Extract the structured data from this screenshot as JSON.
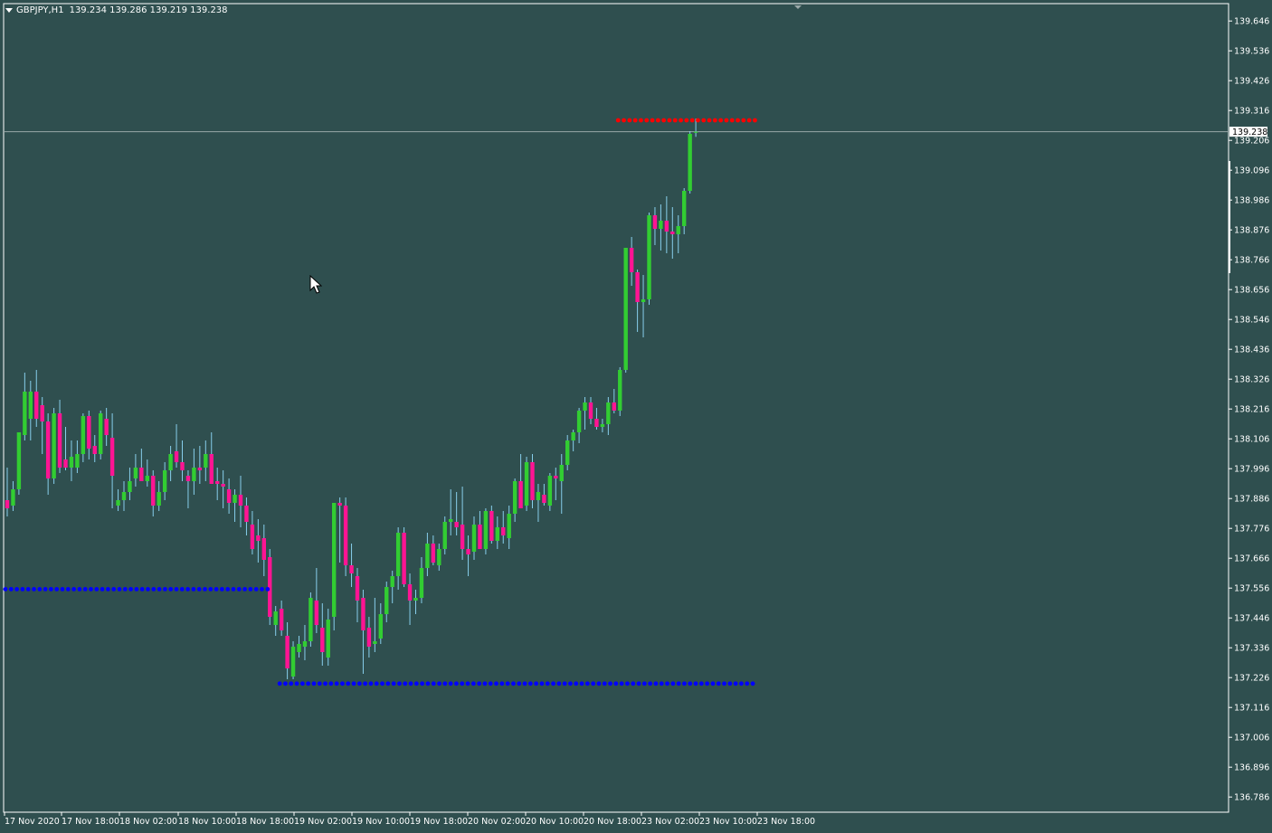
{
  "header": {
    "symbol": "GBPJPY,H1",
    "ohlc": "139.234 139.286 139.219 139.238",
    "menu_icon": "triangle-down-icon"
  },
  "colors": {
    "background": "#2f4f4f",
    "axis": "#ffffff",
    "bull_candle": "#32cd32",
    "bear_candle": "#ff1493",
    "wick": "#87ceeb",
    "resistance_dots": "#ff0000",
    "support_dots": "#0000ff",
    "bid_line": "#9aa8a8"
  },
  "current_price_label": "139.238",
  "chart_data": {
    "type": "candlestick",
    "symbol": "GBPJPY",
    "timeframe": "H1",
    "ylim": [
      136.73,
      139.71
    ],
    "y_ticks": [
      "139.646",
      "139.536",
      "139.426",
      "139.316",
      "139.206",
      "139.096",
      "138.986",
      "138.876",
      "138.766",
      "138.656",
      "138.546",
      "138.436",
      "138.326",
      "138.216",
      "138.106",
      "137.996",
      "137.886",
      "137.776",
      "137.666",
      "137.556",
      "137.446",
      "137.336",
      "137.226",
      "137.116",
      "137.006",
      "136.896",
      "136.786"
    ],
    "x_ticks": [
      "17 Nov 2020",
      "17 Nov 18:00",
      "18 Nov 02:00",
      "18 Nov 10:00",
      "18 Nov 18:00",
      "19 Nov 02:00",
      "19 Nov 10:00",
      "19 Nov 18:00",
      "20 Nov 02:00",
      "20 Nov 10:00",
      "20 Nov 18:00",
      "23 Nov 02:00",
      "23 Nov 10:00",
      "23 Nov 18:00"
    ],
    "current_price": 139.238,
    "candles": [
      {
        "o": 137.88,
        "h": 138.0,
        "l": 137.82,
        "c": 137.85
      },
      {
        "o": 137.86,
        "h": 137.95,
        "l": 137.84,
        "c": 137.92
      },
      {
        "o": 137.92,
        "h": 138.12,
        "l": 137.9,
        "c": 138.13
      },
      {
        "o": 138.12,
        "h": 138.35,
        "l": 138.1,
        "c": 138.28
      },
      {
        "o": 138.18,
        "h": 138.32,
        "l": 138.1,
        "c": 138.28
      },
      {
        "o": 138.28,
        "h": 138.36,
        "l": 138.15,
        "c": 138.18
      },
      {
        "o": 138.23,
        "h": 138.26,
        "l": 138.05,
        "c": 138.17
      },
      {
        "o": 138.17,
        "h": 138.2,
        "l": 137.9,
        "c": 137.96
      },
      {
        "o": 137.96,
        "h": 138.22,
        "l": 137.94,
        "c": 138.2
      },
      {
        "o": 138.2,
        "h": 138.25,
        "l": 137.98,
        "c": 138.0
      },
      {
        "o": 138.03,
        "h": 138.15,
        "l": 137.99,
        "c": 138.0
      },
      {
        "o": 138.0,
        "h": 138.1,
        "l": 137.95,
        "c": 138.04
      },
      {
        "o": 138.0,
        "h": 138.1,
        "l": 137.98,
        "c": 138.05
      },
      {
        "o": 138.05,
        "h": 138.2,
        "l": 138.02,
        "c": 138.19
      },
      {
        "o": 138.19,
        "h": 138.21,
        "l": 138.03,
        "c": 138.07
      },
      {
        "o": 138.08,
        "h": 138.12,
        "l": 138.02,
        "c": 138.05
      },
      {
        "o": 138.05,
        "h": 138.21,
        "l": 138.03,
        "c": 138.2
      },
      {
        "o": 138.18,
        "h": 138.22,
        "l": 138.08,
        "c": 138.12
      },
      {
        "o": 138.11,
        "h": 138.2,
        "l": 137.85,
        "c": 137.97
      },
      {
        "o": 137.86,
        "h": 137.92,
        "l": 137.84,
        "c": 137.88
      },
      {
        "o": 137.88,
        "h": 137.95,
        "l": 137.84,
        "c": 137.91
      },
      {
        "o": 137.91,
        "h": 138.0,
        "l": 137.88,
        "c": 137.95
      },
      {
        "o": 137.96,
        "h": 138.05,
        "l": 137.93,
        "c": 138.0
      },
      {
        "o": 138.0,
        "h": 138.07,
        "l": 137.95,
        "c": 137.95
      },
      {
        "o": 137.95,
        "h": 138.03,
        "l": 137.93,
        "c": 137.97
      },
      {
        "o": 137.97,
        "h": 137.99,
        "l": 137.82,
        "c": 137.86
      },
      {
        "o": 137.86,
        "h": 137.95,
        "l": 137.84,
        "c": 137.91
      },
      {
        "o": 137.91,
        "h": 138.02,
        "l": 137.88,
        "c": 137.99
      },
      {
        "o": 137.99,
        "h": 138.08,
        "l": 137.95,
        "c": 138.05
      },
      {
        "o": 138.06,
        "h": 138.16,
        "l": 138.0,
        "c": 138.02
      },
      {
        "o": 138.02,
        "h": 138.1,
        "l": 137.95,
        "c": 137.99
      },
      {
        "o": 137.97,
        "h": 137.99,
        "l": 137.85,
        "c": 137.95
      },
      {
        "o": 137.95,
        "h": 138.07,
        "l": 137.9,
        "c": 138.0
      },
      {
        "o": 138.0,
        "h": 138.08,
        "l": 137.94,
        "c": 137.99
      },
      {
        "o": 138.0,
        "h": 138.1,
        "l": 137.95,
        "c": 138.05
      },
      {
        "o": 138.05,
        "h": 138.13,
        "l": 137.95,
        "c": 137.94
      },
      {
        "o": 137.95,
        "h": 138.0,
        "l": 137.88,
        "c": 137.94
      },
      {
        "o": 137.94,
        "h": 137.99,
        "l": 137.85,
        "c": 137.93
      },
      {
        "o": 137.92,
        "h": 137.96,
        "l": 137.83,
        "c": 137.87
      },
      {
        "o": 137.87,
        "h": 137.92,
        "l": 137.8,
        "c": 137.9
      },
      {
        "o": 137.9,
        "h": 137.97,
        "l": 137.78,
        "c": 137.86
      },
      {
        "o": 137.86,
        "h": 137.89,
        "l": 137.75,
        "c": 137.8
      },
      {
        "o": 137.79,
        "h": 137.84,
        "l": 137.68,
        "c": 137.7
      },
      {
        "o": 137.75,
        "h": 137.81,
        "l": 137.65,
        "c": 137.73
      },
      {
        "o": 137.74,
        "h": 137.79,
        "l": 137.6,
        "c": 137.66
      },
      {
        "o": 137.67,
        "h": 137.7,
        "l": 137.42,
        "c": 137.45
      },
      {
        "o": 137.42,
        "h": 137.49,
        "l": 137.38,
        "c": 137.47
      },
      {
        "o": 137.48,
        "h": 137.51,
        "l": 137.38,
        "c": 137.4
      },
      {
        "o": 137.38,
        "h": 137.43,
        "l": 137.22,
        "c": 137.26
      },
      {
        "o": 137.23,
        "h": 137.36,
        "l": 137.22,
        "c": 137.34
      },
      {
        "o": 137.32,
        "h": 137.38,
        "l": 137.3,
        "c": 137.35
      },
      {
        "o": 137.34,
        "h": 137.42,
        "l": 137.29,
        "c": 137.36
      },
      {
        "o": 137.36,
        "h": 137.54,
        "l": 137.34,
        "c": 137.52
      },
      {
        "o": 137.51,
        "h": 137.63,
        "l": 137.39,
        "c": 137.42
      },
      {
        "o": 137.41,
        "h": 137.5,
        "l": 137.27,
        "c": 137.32
      },
      {
        "o": 137.3,
        "h": 137.48,
        "l": 137.27,
        "c": 137.44
      },
      {
        "o": 137.45,
        "h": 137.87,
        "l": 137.4,
        "c": 137.87
      },
      {
        "o": 137.87,
        "h": 137.89,
        "l": 137.65,
        "c": 137.86
      },
      {
        "o": 137.86,
        "h": 137.89,
        "l": 137.6,
        "c": 137.64
      },
      {
        "o": 137.64,
        "h": 137.72,
        "l": 137.56,
        "c": 137.61
      },
      {
        "o": 137.6,
        "h": 137.63,
        "l": 137.43,
        "c": 137.51
      },
      {
        "o": 137.52,
        "h": 137.55,
        "l": 137.24,
        "c": 137.4
      },
      {
        "o": 137.41,
        "h": 137.45,
        "l": 137.3,
        "c": 137.34
      },
      {
        "o": 137.35,
        "h": 137.52,
        "l": 137.32,
        "c": 137.36
      },
      {
        "o": 137.37,
        "h": 137.5,
        "l": 137.35,
        "c": 137.46
      },
      {
        "o": 137.46,
        "h": 137.58,
        "l": 137.43,
        "c": 137.56
      },
      {
        "o": 137.56,
        "h": 137.62,
        "l": 137.5,
        "c": 137.6
      },
      {
        "o": 137.6,
        "h": 137.78,
        "l": 137.55,
        "c": 137.76
      },
      {
        "o": 137.76,
        "h": 137.78,
        "l": 137.56,
        "c": 137.57
      },
      {
        "o": 137.57,
        "h": 137.61,
        "l": 137.42,
        "c": 137.51
      },
      {
        "o": 137.51,
        "h": 137.55,
        "l": 137.46,
        "c": 137.52
      },
      {
        "o": 137.52,
        "h": 137.67,
        "l": 137.5,
        "c": 137.63
      },
      {
        "o": 137.63,
        "h": 137.76,
        "l": 137.6,
        "c": 137.72
      },
      {
        "o": 137.72,
        "h": 137.75,
        "l": 137.64,
        "c": 137.65
      },
      {
        "o": 137.64,
        "h": 137.72,
        "l": 137.62,
        "c": 137.7
      },
      {
        "o": 137.7,
        "h": 137.82,
        "l": 137.68,
        "c": 137.8
      },
      {
        "o": 137.8,
        "h": 137.92,
        "l": 137.75,
        "c": 137.81
      },
      {
        "o": 137.8,
        "h": 137.91,
        "l": 137.75,
        "c": 137.78
      },
      {
        "o": 137.79,
        "h": 137.93,
        "l": 137.66,
        "c": 137.7
      },
      {
        "o": 137.7,
        "h": 137.75,
        "l": 137.6,
        "c": 137.68
      },
      {
        "o": 137.69,
        "h": 137.82,
        "l": 137.66,
        "c": 137.79
      },
      {
        "o": 137.79,
        "h": 137.84,
        "l": 137.7,
        "c": 137.7
      },
      {
        "o": 137.7,
        "h": 137.85,
        "l": 137.68,
        "c": 137.84
      },
      {
        "o": 137.84,
        "h": 137.86,
        "l": 137.72,
        "c": 137.73
      },
      {
        "o": 137.73,
        "h": 137.82,
        "l": 137.7,
        "c": 137.78
      },
      {
        "o": 137.78,
        "h": 137.84,
        "l": 137.72,
        "c": 137.75
      },
      {
        "o": 137.74,
        "h": 137.86,
        "l": 137.7,
        "c": 137.83
      },
      {
        "o": 137.83,
        "h": 137.96,
        "l": 137.8,
        "c": 137.95
      },
      {
        "o": 137.95,
        "h": 138.05,
        "l": 137.85,
        "c": 137.85
      },
      {
        "o": 137.86,
        "h": 138.04,
        "l": 137.84,
        "c": 138.02
      },
      {
        "o": 138.02,
        "h": 138.05,
        "l": 137.85,
        "c": 137.88
      },
      {
        "o": 137.88,
        "h": 137.94,
        "l": 137.8,
        "c": 137.91
      },
      {
        "o": 137.9,
        "h": 137.94,
        "l": 137.86,
        "c": 137.87
      },
      {
        "o": 137.86,
        "h": 137.98,
        "l": 137.84,
        "c": 137.97
      },
      {
        "o": 137.97,
        "h": 138.0,
        "l": 137.88,
        "c": 137.96
      },
      {
        "o": 137.95,
        "h": 138.05,
        "l": 137.83,
        "c": 138.01
      },
      {
        "o": 138.01,
        "h": 138.12,
        "l": 137.99,
        "c": 138.1
      },
      {
        "o": 138.1,
        "h": 138.14,
        "l": 138.06,
        "c": 138.13
      },
      {
        "o": 138.13,
        "h": 138.22,
        "l": 138.09,
        "c": 138.21
      },
      {
        "o": 138.21,
        "h": 138.26,
        "l": 138.14,
        "c": 138.24
      },
      {
        "o": 138.24,
        "h": 138.26,
        "l": 138.16,
        "c": 138.18
      },
      {
        "o": 138.18,
        "h": 138.22,
        "l": 138.14,
        "c": 138.15
      },
      {
        "o": 138.15,
        "h": 138.18,
        "l": 138.13,
        "c": 138.16
      },
      {
        "o": 138.16,
        "h": 138.26,
        "l": 138.12,
        "c": 138.24
      },
      {
        "o": 138.24,
        "h": 138.29,
        "l": 138.2,
        "c": 138.21
      },
      {
        "o": 138.21,
        "h": 138.37,
        "l": 138.19,
        "c": 138.36
      },
      {
        "o": 138.36,
        "h": 138.81,
        "l": 138.35,
        "c": 138.81
      },
      {
        "o": 138.81,
        "h": 138.85,
        "l": 138.67,
        "c": 138.72
      },
      {
        "o": 138.72,
        "h": 138.73,
        "l": 138.5,
        "c": 138.61
      },
      {
        "o": 138.61,
        "h": 138.71,
        "l": 138.48,
        "c": 138.62
      },
      {
        "o": 138.62,
        "h": 138.94,
        "l": 138.6,
        "c": 138.93
      },
      {
        "o": 138.93,
        "h": 138.96,
        "l": 138.82,
        "c": 138.88
      },
      {
        "o": 138.88,
        "h": 138.97,
        "l": 138.8,
        "c": 138.91
      },
      {
        "o": 138.91,
        "h": 139.0,
        "l": 138.79,
        "c": 138.87
      },
      {
        "o": 138.87,
        "h": 138.96,
        "l": 138.77,
        "c": 138.86
      },
      {
        "o": 138.86,
        "h": 138.93,
        "l": 138.79,
        "c": 138.89
      },
      {
        "o": 138.89,
        "h": 139.03,
        "l": 138.86,
        "c": 139.02
      },
      {
        "o": 139.02,
        "h": 139.24,
        "l": 139.01,
        "c": 139.23
      },
      {
        "o": 139.234,
        "h": 139.286,
        "l": 139.219,
        "c": 139.238
      }
    ],
    "dot_levels": [
      {
        "type": "support",
        "price": 137.552,
        "from_index": 0,
        "to_index": 45
      },
      {
        "type": "support",
        "price": 137.204,
        "from_index": 47,
        "to_index": 128
      },
      {
        "type": "resistance",
        "price": 139.28,
        "from_index": 105,
        "to_index": 128
      }
    ]
  }
}
